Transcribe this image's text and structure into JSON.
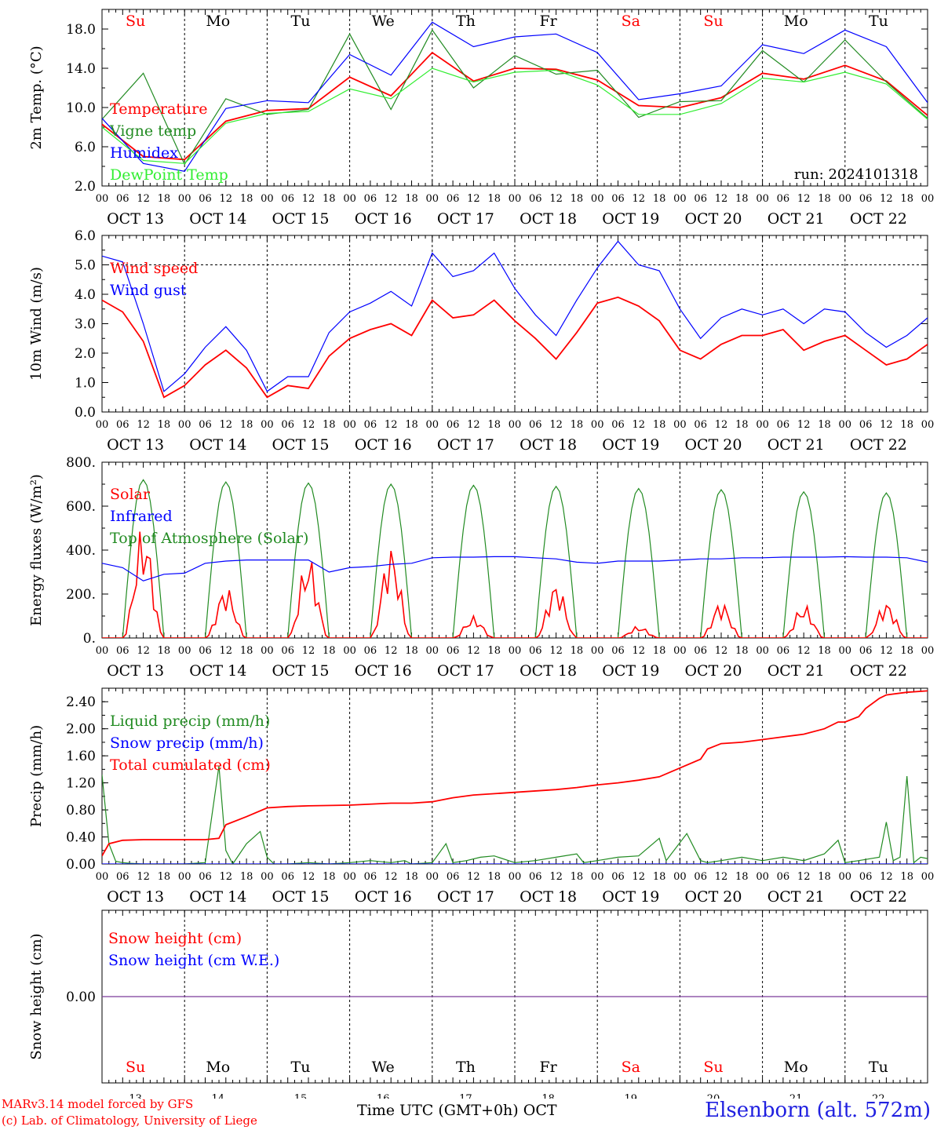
{
  "chart_data": {
    "type": "line",
    "days": [
      "OCT 13",
      "OCT 14",
      "OCT 15",
      "OCT 16",
      "OCT 17",
      "OCT 18",
      "OCT 19",
      "OCT 20",
      "OCT 21",
      "OCT 22"
    ],
    "weekdays": [
      {
        "label": "Su",
        "color": "#ff0000"
      },
      {
        "label": "Mo",
        "color": "#000000"
      },
      {
        "label": "Tu",
        "color": "#000000"
      },
      {
        "label": "We",
        "color": "#000000"
      },
      {
        "label": "Th",
        "color": "#000000"
      },
      {
        "label": "Fr",
        "color": "#000000"
      },
      {
        "label": "Sa",
        "color": "#ff0000"
      },
      {
        "label": "Su",
        "color": "#ff0000"
      },
      {
        "label": "Mo",
        "color": "#000000"
      },
      {
        "label": "Tu",
        "color": "#000000"
      }
    ],
    "day_numbers": [
      "13",
      "14",
      "15",
      "16",
      "17",
      "18",
      "19",
      "20",
      "21",
      "22"
    ],
    "hour_ticks": [
      "00",
      "06",
      "12",
      "18"
    ],
    "hour_end_label": "00",
    "xlabel": "Time UTC (GMT+0h)",
    "xlabel_month": "OCT",
    "panels": [
      {
        "ylabel": "2m Temp. (°C)",
        "ylim": [
          2.0,
          20.0
        ],
        "yticks": [
          "2.0",
          "6.0",
          "10.0",
          "14.0",
          "18.0"
        ],
        "ytick_values": [
          2,
          6,
          10,
          14,
          18
        ],
        "annotation": "run: 2024101318",
        "legend": [
          {
            "label": "Temperature",
            "color": "#ff0000"
          },
          {
            "label": "Vigne temp",
            "color": "#228b22"
          },
          {
            "label": "Humidex",
            "color": "#0000ff"
          },
          {
            "label": "DewPoint Temp",
            "color": "#32ee32"
          }
        ],
        "series": [
          {
            "name": "Temperature",
            "color": "#ff0000",
            "x": [
              0,
              12,
              24,
              36,
              48,
              60,
              72,
              84,
              96,
              108,
              120,
              132,
              144,
              156,
              168,
              180,
              192,
              204,
              216,
              228,
              240
            ],
            "y": [
              8.3,
              5.0,
              4.7,
              8.6,
              9.7,
              9.9,
              13.1,
              11.2,
              15.6,
              12.7,
              14.0,
              13.9,
              12.8,
              10.2,
              10.0,
              11.0,
              13.5,
              12.9,
              14.3,
              12.7,
              9.2
            ]
          },
          {
            "name": "Vigne temp",
            "color": "#228b22",
            "x": [
              0,
              12,
              24,
              36,
              48,
              60,
              72,
              84,
              96,
              108,
              120,
              132,
              144,
              156,
              168,
              180,
              192,
              204,
              216,
              228,
              240
            ],
            "y": [
              8.8,
              13.5,
              4.2,
              10.9,
              9.3,
              9.8,
              17.5,
              9.8,
              17.9,
              12.0,
              15.3,
              13.4,
              13.8,
              9.0,
              10.6,
              10.7,
              15.8,
              12.6,
              16.9,
              12.6,
              8.9
            ]
          },
          {
            "name": "Humidex",
            "color": "#0000ff",
            "x": [
              0,
              12,
              24,
              36,
              48,
              60,
              72,
              84,
              96,
              108,
              120,
              132,
              144,
              156,
              168,
              180,
              192,
              204,
              216,
              228,
              240
            ],
            "y": [
              8.9,
              4.3,
              3.5,
              9.9,
              10.7,
              10.5,
              15.4,
              13.3,
              18.7,
              16.2,
              17.2,
              17.5,
              15.6,
              10.8,
              11.4,
              12.2,
              16.4,
              15.5,
              17.9,
              16.2,
              10.5
            ]
          },
          {
            "name": "DewPoint Temp",
            "color": "#32ee32",
            "x": [
              0,
              12,
              24,
              36,
              48,
              60,
              72,
              84,
              96,
              108,
              120,
              132,
              144,
              156,
              168,
              180,
              192,
              204,
              216,
              228,
              240
            ],
            "y": [
              8.0,
              4.6,
              4.3,
              8.4,
              9.4,
              9.6,
              11.9,
              10.9,
              14.0,
              12.6,
              13.6,
              13.8,
              12.3,
              9.3,
              9.3,
              10.4,
              13.0,
              12.6,
              13.6,
              12.4,
              8.8
            ]
          }
        ]
      },
      {
        "ylabel": "10m Wind (m/s)",
        "ylim": [
          0.0,
          6.0
        ],
        "yticks": [
          "0.0",
          "1.0",
          "2.0",
          "3.0",
          "4.0",
          "5.0",
          "6.0"
        ],
        "ytick_values": [
          0,
          1,
          2,
          3,
          4,
          5,
          6
        ],
        "dashed_level": 5.0,
        "legend": [
          {
            "label": "Wind speed",
            "color": "#ff0000"
          },
          {
            "label": "Wind gust",
            "color": "#0000ff"
          }
        ],
        "series": [
          {
            "name": "Wind speed",
            "color": "#ff0000",
            "x": [
              0,
              6,
              12,
              18,
              24,
              30,
              36,
              42,
              48,
              54,
              60,
              66,
              72,
              78,
              84,
              90,
              96,
              102,
              108,
              114,
              120,
              126,
              132,
              138,
              144,
              150,
              156,
              162,
              168,
              174,
              180,
              186,
              192,
              198,
              204,
              210,
              216,
              222,
              228,
              234,
              240
            ],
            "y": [
              3.8,
              3.4,
              2.4,
              0.5,
              0.9,
              1.6,
              2.1,
              1.5,
              0.5,
              0.9,
              0.8,
              1.9,
              2.5,
              2.8,
              3.0,
              2.6,
              3.8,
              3.2,
              3.3,
              3.8,
              3.1,
              2.5,
              1.8,
              2.7,
              3.7,
              3.9,
              3.6,
              3.1,
              2.1,
              1.8,
              2.3,
              2.6,
              2.6,
              2.8,
              2.1,
              2.4,
              2.6,
              2.1,
              1.6,
              1.8,
              2.3
            ]
          },
          {
            "name": "Wind gust",
            "color": "#0000ff",
            "x": [
              0,
              6,
              12,
              18,
              24,
              30,
              36,
              42,
              48,
              54,
              60,
              66,
              72,
              78,
              84,
              90,
              96,
              102,
              108,
              114,
              120,
              126,
              132,
              138,
              144,
              150,
              156,
              162,
              168,
              174,
              180,
              186,
              192,
              198,
              204,
              210,
              216,
              222,
              228,
              234,
              240
            ],
            "y": [
              5.3,
              5.1,
              3.0,
              0.7,
              1.3,
              2.2,
              2.9,
              2.1,
              0.7,
              1.2,
              1.2,
              2.7,
              3.4,
              3.7,
              4.1,
              3.6,
              5.4,
              4.6,
              4.8,
              5.4,
              4.2,
              3.3,
              2.6,
              3.8,
              4.9,
              5.8,
              5.0,
              4.8,
              3.5,
              2.5,
              3.2,
              3.5,
              3.3,
              3.5,
              3.0,
              3.5,
              3.4,
              2.7,
              2.2,
              2.6,
              3.2
            ]
          }
        ]
      },
      {
        "ylabel": "Energy fluxes (W/m²)",
        "ylim": [
          0,
          800
        ],
        "yticks": [
          "0.",
          "200.",
          "400.",
          "600.",
          "800."
        ],
        "ytick_values": [
          0,
          200,
          400,
          600,
          800
        ],
        "legend": [
          {
            "label": "Solar",
            "color": "#ff0000"
          },
          {
            "label": "Infrared",
            "color": "#0000ff"
          },
          {
            "label": "Top of Atmosphere (Solar)",
            "color": "#228b22"
          }
        ],
        "daily_toa_peak": [
          720,
          710,
          705,
          700,
          695,
          690,
          680,
          675,
          665,
          660
        ],
        "daily_solar_peak": [
          520,
          240,
          380,
          430,
          100,
          260,
          55,
          170,
          155,
          170
        ],
        "series": [
          {
            "name": "Infrared",
            "color": "#0000ff",
            "x": [
              0,
              6,
              12,
              18,
              24,
              30,
              36,
              42,
              48,
              54,
              60,
              66,
              72,
              78,
              84,
              90,
              96,
              102,
              108,
              114,
              120,
              126,
              132,
              138,
              144,
              150,
              156,
              162,
              168,
              174,
              180,
              186,
              192,
              198,
              204,
              210,
              216,
              222,
              228,
              234,
              240
            ],
            "y": [
              340,
              320,
              260,
              290,
              295,
              340,
              350,
              355,
              355,
              355,
              355,
              300,
              320,
              325,
              335,
              340,
              365,
              368,
              368,
              370,
              370,
              365,
              360,
              345,
              340,
              350,
              350,
              350,
              355,
              360,
              360,
              365,
              365,
              368,
              368,
              368,
              370,
              368,
              368,
              365,
              345
            ]
          }
        ]
      },
      {
        "ylabel": "Precip (mm/h)",
        "ylim": [
          0.0,
          2.6
        ],
        "yticks": [
          "0.00",
          "0.40",
          "0.80",
          "1.20",
          "1.60",
          "2.00",
          "2.40"
        ],
        "ytick_values": [
          0,
          0.4,
          0.8,
          1.2,
          1.6,
          2.0,
          2.4
        ],
        "legend": [
          {
            "label": "Liquid precip (mm/h)",
            "color": "#228b22"
          },
          {
            "label": "Snow precip (mm/h)",
            "color": "#0000ff"
          },
          {
            "label": "Total cumulated (cm)",
            "color": "#ff0000"
          }
        ],
        "series": [
          {
            "name": "Liquid precip (mm/h)",
            "color": "#228b22",
            "x": [
              0,
              2,
              4,
              6,
              8,
              12,
              18,
              24,
              30,
              34,
              36,
              38,
              42,
              46,
              48,
              50,
              54,
              60,
              66,
              72,
              78,
              84,
              88,
              90,
              96,
              100,
              102,
              106,
              110,
              114,
              120,
              126,
              132,
              138,
              140,
              144,
              150,
              156,
              162,
              164,
              170,
              174,
              176,
              180,
              186,
              192,
              198,
              204,
              210,
              214,
              216,
              220,
              226,
              228,
              230,
              232,
              234,
              236,
              238,
              240
            ],
            "y": [
              1.32,
              0.3,
              0.04,
              0.02,
              0.01,
              0.0,
              0.0,
              0.0,
              0.02,
              1.45,
              0.2,
              0.0,
              0.3,
              0.48,
              0.1,
              0.0,
              0.0,
              0.02,
              0.0,
              0.02,
              0.05,
              0.02,
              0.05,
              0.0,
              0.02,
              0.3,
              0.02,
              0.05,
              0.1,
              0.12,
              0.02,
              0.05,
              0.1,
              0.15,
              0.02,
              0.05,
              0.1,
              0.12,
              0.38,
              0.05,
              0.45,
              0.05,
              0.02,
              0.05,
              0.1,
              0.05,
              0.1,
              0.05,
              0.15,
              0.35,
              0.02,
              0.05,
              0.1,
              0.62,
              0.05,
              0.1,
              1.3,
              0.02,
              0.1,
              0.08
            ]
          },
          {
            "name": "Snow precip (mm/h)",
            "color": "#0000ff",
            "x": [
              0,
              240
            ],
            "y": [
              0.0,
              0.0
            ]
          },
          {
            "name": "Total cumulated (cm)",
            "color": "#ff0000",
            "x": [
              0,
              2,
              6,
              12,
              24,
              30,
              34,
              36,
              42,
              48,
              54,
              60,
              72,
              84,
              90,
              96,
              102,
              108,
              120,
              132,
              138,
              144,
              150,
              156,
              162,
              168,
              174,
              176,
              180,
              186,
              192,
              198,
              204,
              210,
              214,
              216,
              220,
              222,
              226,
              228,
              234,
              240
            ],
            "y": [
              0.12,
              0.3,
              0.35,
              0.36,
              0.36,
              0.36,
              0.38,
              0.58,
              0.7,
              0.83,
              0.85,
              0.86,
              0.87,
              0.9,
              0.9,
              0.92,
              0.98,
              1.02,
              1.06,
              1.1,
              1.13,
              1.17,
              1.2,
              1.24,
              1.29,
              1.42,
              1.55,
              1.7,
              1.78,
              1.8,
              1.84,
              1.88,
              1.92,
              2.0,
              2.1,
              2.1,
              2.18,
              2.3,
              2.45,
              2.5,
              2.54,
              2.56
            ]
          }
        ]
      },
      {
        "ylabel": "Snow height (cm)",
        "ylim": [
          -1.0,
          1.0
        ],
        "yticks": [
          "0.00"
        ],
        "ytick_values": [
          0
        ],
        "legend": [
          {
            "label": "Snow height (cm)",
            "color": "#ff0000"
          },
          {
            "label": "Snow height (cm W.E.)",
            "color": "#0000ff"
          }
        ],
        "series": [
          {
            "name": "Snow height (cm)",
            "color": "#7a3a9a",
            "x": [
              0,
              240
            ],
            "y": [
              0.0,
              0.0
            ]
          }
        ]
      }
    ]
  },
  "footer": {
    "credit_line1": "MARv3.14 model forced by GFS",
    "credit_line2": "(c) Lab. of Climatology, University of Liege",
    "station": "Elsenborn (alt. 572m)"
  }
}
